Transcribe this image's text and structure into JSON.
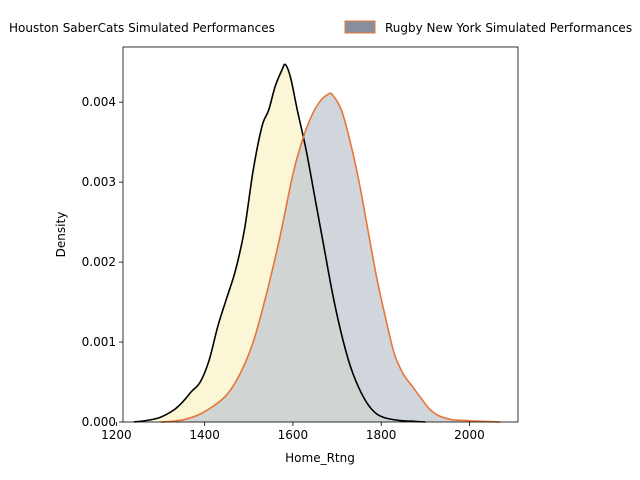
{
  "chart_data": {
    "type": "area",
    "xlabel": "Home_Rtng",
    "ylabel": "Density",
    "xlim": [
      1215,
      2110
    ],
    "ylim": [
      0,
      0.00469
    ],
    "xticks": [
      1200,
      1400,
      1600,
      1800,
      2000
    ],
    "xtick_labels": [
      "1200",
      "1400",
      "1600",
      "1800",
      "2000"
    ],
    "yticks": [
      0,
      0.001,
      0.002,
      0.003,
      0.004
    ],
    "ytick_labels": [
      "0.000",
      "0.001",
      "0.002",
      "0.003",
      "0.004"
    ],
    "grid": false,
    "legend_position": "top-center, above plot",
    "series": [
      {
        "name": "Houston SaberCats Simulated Performances",
        "fill_color": "#f9f3c6",
        "line_color": "#000000",
        "x": [
          1240,
          1270,
          1300,
          1330,
          1350,
          1370,
          1390,
          1410,
          1430,
          1450,
          1470,
          1490,
          1510,
          1530,
          1545,
          1560,
          1575,
          1583,
          1595,
          1610,
          1630,
          1650,
          1670,
          1690,
          1710,
          1730,
          1750,
          1770,
          1790,
          1810,
          1840,
          1870,
          1900
        ],
        "y": [
          0.0,
          2e-05,
          6e-05,
          0.00015,
          0.00025,
          0.00038,
          0.0005,
          0.00077,
          0.0012,
          0.00155,
          0.0019,
          0.0024,
          0.00315,
          0.0037,
          0.0039,
          0.0042,
          0.0044,
          0.00447,
          0.0043,
          0.0039,
          0.0034,
          0.0028,
          0.0022,
          0.0016,
          0.0011,
          0.0007,
          0.00042,
          0.00022,
          0.0001,
          5e-05,
          2e-05,
          1e-05,
          0.0
        ]
      },
      {
        "name": "Rugby New York Simulated Performances",
        "fill_color": "#bfc6d0",
        "line_color": "#e8743a",
        "legend_patch_color": "#8890a0",
        "x": [
          1300,
          1330,
          1360,
          1390,
          1420,
          1450,
          1480,
          1510,
          1540,
          1570,
          1600,
          1620,
          1640,
          1660,
          1680,
          1690,
          1710,
          1730,
          1750,
          1770,
          1790,
          1810,
          1830,
          1850,
          1870,
          1890,
          1910,
          1930,
          1960,
          1990,
          2020,
          2070
        ],
        "y": [
          0.0,
          1e-05,
          4e-05,
          0.0001,
          0.0002,
          0.00034,
          0.0006,
          0.001,
          0.0016,
          0.0023,
          0.0031,
          0.0035,
          0.0038,
          0.004,
          0.0041,
          0.00409,
          0.0039,
          0.0035,
          0.003,
          0.0024,
          0.0018,
          0.0013,
          0.00085,
          0.0006,
          0.00045,
          0.0003,
          0.00016,
          8e-05,
          3e-05,
          2e-05,
          1e-05,
          0.0
        ]
      }
    ]
  }
}
